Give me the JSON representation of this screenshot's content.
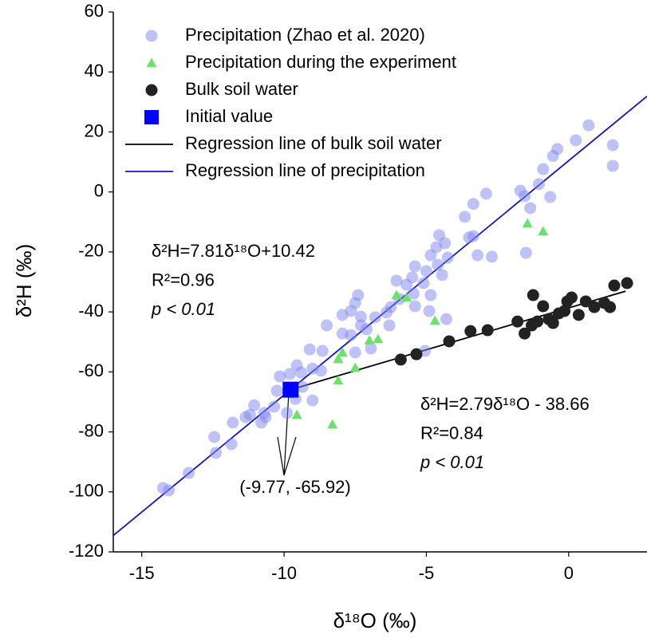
{
  "chart_data": {
    "type": "scatter",
    "x_label": "δ¹⁸O (‰)",
    "y_label": "δ²H (‰)",
    "xlim": [
      -16,
      2.75
    ],
    "ylim": [
      -120,
      60
    ],
    "xticks": [
      -15,
      -10,
      -5,
      0
    ],
    "yticks": [
      -120,
      -100,
      -80,
      -60,
      -40,
      -20,
      0,
      20,
      40,
      60
    ],
    "series": [
      {
        "name": "Precipitation (Zhao et al. 2020)",
        "marker": "circle",
        "color": "#7f85ee",
        "x": [
          0.7,
          0.25,
          -0.4,
          -0.55,
          1.55,
          1.55,
          -0.9,
          -1.05,
          -0.65,
          -1.7,
          -1.55,
          -1.35,
          -2.9,
          -3.65,
          -3.35,
          -3.35,
          -1.5,
          -4.55,
          -4.35,
          -3.5,
          -3.2,
          -2.7,
          -4.25,
          -4.65,
          -4.85,
          -4.6,
          -5.4,
          -5.0,
          -4.45,
          -5.5,
          -5.1,
          -6.05,
          -5.7,
          -5.45,
          -5.95,
          -6.25,
          -6.4,
          -4.85,
          -5.4,
          -4.9,
          -6.8,
          -7.5,
          -7.3,
          -7.4,
          -7.65,
          -7.3,
          -7.1,
          -6.95,
          -7.65,
          -7.5,
          -7.95,
          -7.95,
          -8.5,
          -8.65,
          -9.1,
          -9.55,
          -9.0,
          -9.4,
          -8.7,
          -9.8,
          -9.35,
          -10.15,
          -9.6,
          -9.0,
          -10.25,
          -10.35,
          -9.9,
          -11.05,
          -10.7,
          -11.2,
          -11.35,
          -10.8,
          -10.65,
          -11.8,
          -11.85,
          -12.45,
          -12.4,
          -13.35,
          -14.25,
          -14.05,
          -5.05,
          -6.3,
          -4.3
        ],
        "values": [
          22.2,
          17.2,
          14.3,
          12,
          15.6,
          8.7,
          7.6,
          2.6,
          -1.7,
          0.4,
          -1.4,
          -5.4,
          -0.6,
          -8.3,
          -4,
          -14.7,
          -20.3,
          -14.4,
          -17.1,
          -15.2,
          -21.1,
          -21.6,
          -21.9,
          -18.4,
          -21.1,
          -24.3,
          -24.8,
          -26.4,
          -27.7,
          -28.5,
          -30.4,
          -29.6,
          -30.9,
          -33.9,
          -35.7,
          -38.4,
          -40.2,
          -34.4,
          -38.1,
          -39.7,
          -41.8,
          -37,
          -41.6,
          -34.4,
          -39.7,
          -44.5,
          -45.8,
          -52.2,
          -47.7,
          -53.5,
          -41,
          -47.2,
          -44.5,
          -53,
          -52.5,
          -57.8,
          -58.9,
          -60.2,
          -59.6,
          -60.7,
          -65,
          -61.5,
          -69,
          -69.5,
          -66.3,
          -71.6,
          -73.7,
          -71.1,
          -73.7,
          -74.3,
          -75.1,
          -76.9,
          -75.1,
          -76.9,
          -84.1,
          -81.7,
          -87,
          -93.7,
          -98.7,
          -99.5,
          -53,
          -44.5,
          -42.4
        ]
      },
      {
        "name": "Precipitation during the experiment",
        "marker": "triangle",
        "color": "#6ee06e",
        "x": [
          -1.45,
          -0.9,
          -6.05,
          -5.7,
          -4.7,
          -6.7,
          -7.0,
          -7.5,
          -7.95,
          -8.1,
          -8.1,
          -9.55,
          -8.3
        ],
        "values": [
          -10.5,
          -13.1,
          -34.4,
          -35.2,
          -42.9,
          -49,
          -49.5,
          -58.6,
          -53.5,
          -55.7,
          -62.8,
          -74.3,
          -77.5
        ]
      },
      {
        "name": "Bulk soil water",
        "marker": "circle",
        "color": "#222222",
        "x": [
          -5.9,
          -5.35,
          -4.2,
          -3.45,
          -2.85,
          -1.8,
          -1.55,
          -1.25,
          -1.3,
          -1.1,
          -0.9,
          -0.7,
          -0.55,
          -0.35,
          -0.15,
          -0.05,
          0.1,
          0.35,
          0.6,
          0.9,
          1.25,
          1.45,
          1.6,
          2.05
        ],
        "values": [
          -55.9,
          -54.1,
          -49.8,
          -46.4,
          -46.1,
          -43.2,
          -47.2,
          -34.4,
          -44.5,
          -43.2,
          -38.1,
          -42.4,
          -43.7,
          -40.5,
          -39.7,
          -36.5,
          -35.2,
          -41,
          -36.5,
          -38.4,
          -37,
          -38.4,
          -31.2,
          -30.4
        ]
      },
      {
        "name": "Initial value",
        "marker": "square",
        "color": "#0000ff",
        "x": [
          -9.77
        ],
        "values": [
          -65.92
        ]
      },
      {
        "name": "Regression line of bulk soil water",
        "marker": "line",
        "color": "#000000",
        "x": [
          -9.77,
          2.0
        ],
        "values": [
          -65.92,
          -33.08
        ]
      },
      {
        "name": "Regression line of precipitation",
        "marker": "line",
        "color": "#1414b4",
        "x": [
          -16,
          2.75
        ],
        "values": [
          -114.54,
          31.9
        ]
      }
    ],
    "annotations": [
      {
        "lines": [
          "δ²H=7.81δ¹⁸O+10.42",
          "R²=0.96",
          "p < 0.01"
        ],
        "color": "#1414b4"
      },
      {
        "lines": [
          "δ²H=2.79δ¹⁸O - 38.66",
          "R²=0.84",
          "p < 0.01"
        ],
        "color": "#000000"
      },
      {
        "lines": [
          "(-9.77, -65.92)"
        ],
        "color": "#000000"
      }
    ]
  }
}
